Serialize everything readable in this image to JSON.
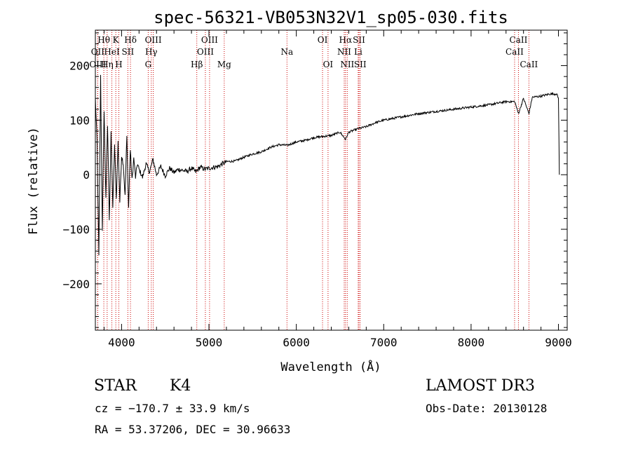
{
  "chart_data": {
    "type": "line",
    "title": "spec-56321-VB053N32V1_sp05-030.fits",
    "xlabel": "Wavelength (Å)",
    "ylabel": "Flux (relative)",
    "xlim": [
      3700,
      9100
    ],
    "ylim": [
      -285,
      265
    ],
    "x_ticks": [
      4000,
      5000,
      6000,
      7000,
      8000,
      9000
    ],
    "y_ticks": [
      -200,
      -100,
      0,
      100,
      200
    ],
    "grid": false,
    "line_color": "#000000",
    "marker_color": "#cc0000",
    "spectrum": {
      "name": "flux",
      "x": [
        3700,
        3720,
        3740,
        3760,
        3780,
        3800,
        3820,
        3840,
        3860,
        3880,
        3900,
        3920,
        3940,
        3960,
        3980,
        4000,
        4020,
        4040,
        4060,
        4080,
        4100,
        4120,
        4140,
        4160,
        4180,
        4200,
        4240,
        4280,
        4320,
        4360,
        4400,
        4450,
        4500,
        4550,
        4600,
        4650,
        4700,
        4750,
        4800,
        4850,
        4900,
        4950,
        5000,
        5100,
        5200,
        5300,
        5400,
        5500,
        5600,
        5700,
        5800,
        5900,
        6000,
        6100,
        6200,
        6300,
        6400,
        6500,
        6563,
        6600,
        6700,
        6800,
        6900,
        7000,
        7200,
        7400,
        7600,
        7800,
        8000,
        8200,
        8400,
        8500,
        8542,
        8600,
        8662,
        8700,
        8800,
        8900,
        8980,
        9000,
        9010
      ],
      "y": [
        140,
        60,
        -150,
        180,
        -100,
        120,
        -40,
        90,
        -80,
        75,
        -60,
        55,
        -45,
        60,
        -50,
        35,
        20,
        -40,
        70,
        -60,
        45,
        -10,
        30,
        -5,
        20,
        10,
        -5,
        20,
        5,
        28,
        0,
        15,
        -2,
        12,
        4,
        10,
        8,
        6,
        12,
        5,
        14,
        10,
        12,
        15,
        24,
        25,
        32,
        38,
        42,
        50,
        55,
        54,
        60,
        63,
        68,
        70,
        72,
        78,
        65,
        78,
        84,
        88,
        95,
        100,
        106,
        112,
        116,
        120,
        124,
        128,
        134,
        134,
        112,
        140,
        112,
        142,
        144,
        148,
        148,
        140,
        0
      ]
    },
    "markers": [
      {
        "label": "Hθ",
        "wavelength": 3797,
        "row": 1
      },
      {
        "label": "OII",
        "wavelength": 3727,
        "row": 2
      },
      {
        "label": "HeI",
        "wavelength": 3889,
        "row": 2
      },
      {
        "label": "OIII",
        "wavelength": 3727,
        "row": 3
      },
      {
        "label": "Hη",
        "wavelength": 3835,
        "row": 3
      },
      {
        "label": "K",
        "wavelength": 3934,
        "row": 1
      },
      {
        "label": "H",
        "wavelength": 3969,
        "row": 3
      },
      {
        "label": "Hδ",
        "wavelength": 4102,
        "row": 1
      },
      {
        "label": "SII",
        "wavelength": 4072,
        "row": 2
      },
      {
        "label": "OIII",
        "wavelength": 4363,
        "row": 1
      },
      {
        "label": "Hγ",
        "wavelength": 4340,
        "row": 2
      },
      {
        "label": "G",
        "wavelength": 4305,
        "row": 3
      },
      {
        "label": "OIII",
        "wavelength": 5007,
        "row": 1
      },
      {
        "label": "OIII",
        "wavelength": 4959,
        "row": 2
      },
      {
        "label": "Hβ",
        "wavelength": 4861,
        "row": 3
      },
      {
        "label": "Mg",
        "wavelength": 5175,
        "row": 3
      },
      {
        "label": "Na",
        "wavelength": 5893,
        "row": 2
      },
      {
        "label": "OI",
        "wavelength": 6300,
        "row": 1
      },
      {
        "label": "OI",
        "wavelength": 6363,
        "row": 3
      },
      {
        "label": "Hα",
        "wavelength": 6563,
        "row": 1
      },
      {
        "label": "NII",
        "wavelength": 6548,
        "row": 2
      },
      {
        "label": "NII",
        "wavelength": 6583,
        "row": 3
      },
      {
        "label": "SII",
        "wavelength": 6717,
        "row": 1
      },
      {
        "label": "Li",
        "wavelength": 6708,
        "row": 2
      },
      {
        "label": "SII",
        "wavelength": 6731,
        "row": 3
      },
      {
        "label": "CaII",
        "wavelength": 8542,
        "row": 1
      },
      {
        "label": "CaII",
        "wavelength": 8498,
        "row": 2
      },
      {
        "label": "CaII",
        "wavelength": 8662,
        "row": 3
      }
    ]
  },
  "info": {
    "object_class": "STAR",
    "subclass": "K4",
    "survey": "LAMOST DR3",
    "redshift": "cz = −170.7 ± 33.9 km/s",
    "obs_date": "Obs-Date: 20130128",
    "coords": "RA =  53.37206, DEC =  30.96633"
  }
}
